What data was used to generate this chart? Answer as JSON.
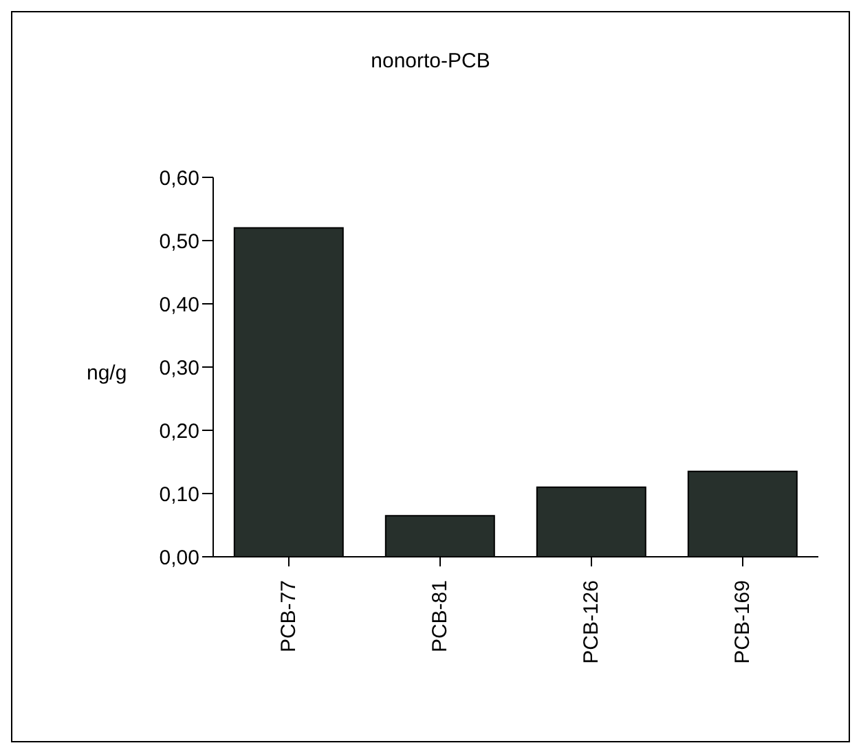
{
  "chart_data": {
    "type": "bar",
    "title": "nonorto-PCB",
    "ylabel": "ng/g",
    "categories": [
      "PCB-77",
      "PCB-81",
      "PCB-126",
      "PCB-169"
    ],
    "values": [
      0.52,
      0.065,
      0.11,
      0.135
    ],
    "color": "#27302c",
    "ylim": [
      0,
      0.6
    ],
    "yticks": [
      {
        "value": 0,
        "label": "0,00"
      },
      {
        "value": 0.1,
        "label": "0,10"
      },
      {
        "value": 0.2,
        "label": "0,20"
      },
      {
        "value": 0.3,
        "label": "0,30"
      },
      {
        "value": 0.4,
        "label": "0,40"
      },
      {
        "value": 0.5,
        "label": "0,50"
      },
      {
        "value": 0.6,
        "label": "0,60"
      }
    ],
    "grid": false,
    "legend": false
  }
}
